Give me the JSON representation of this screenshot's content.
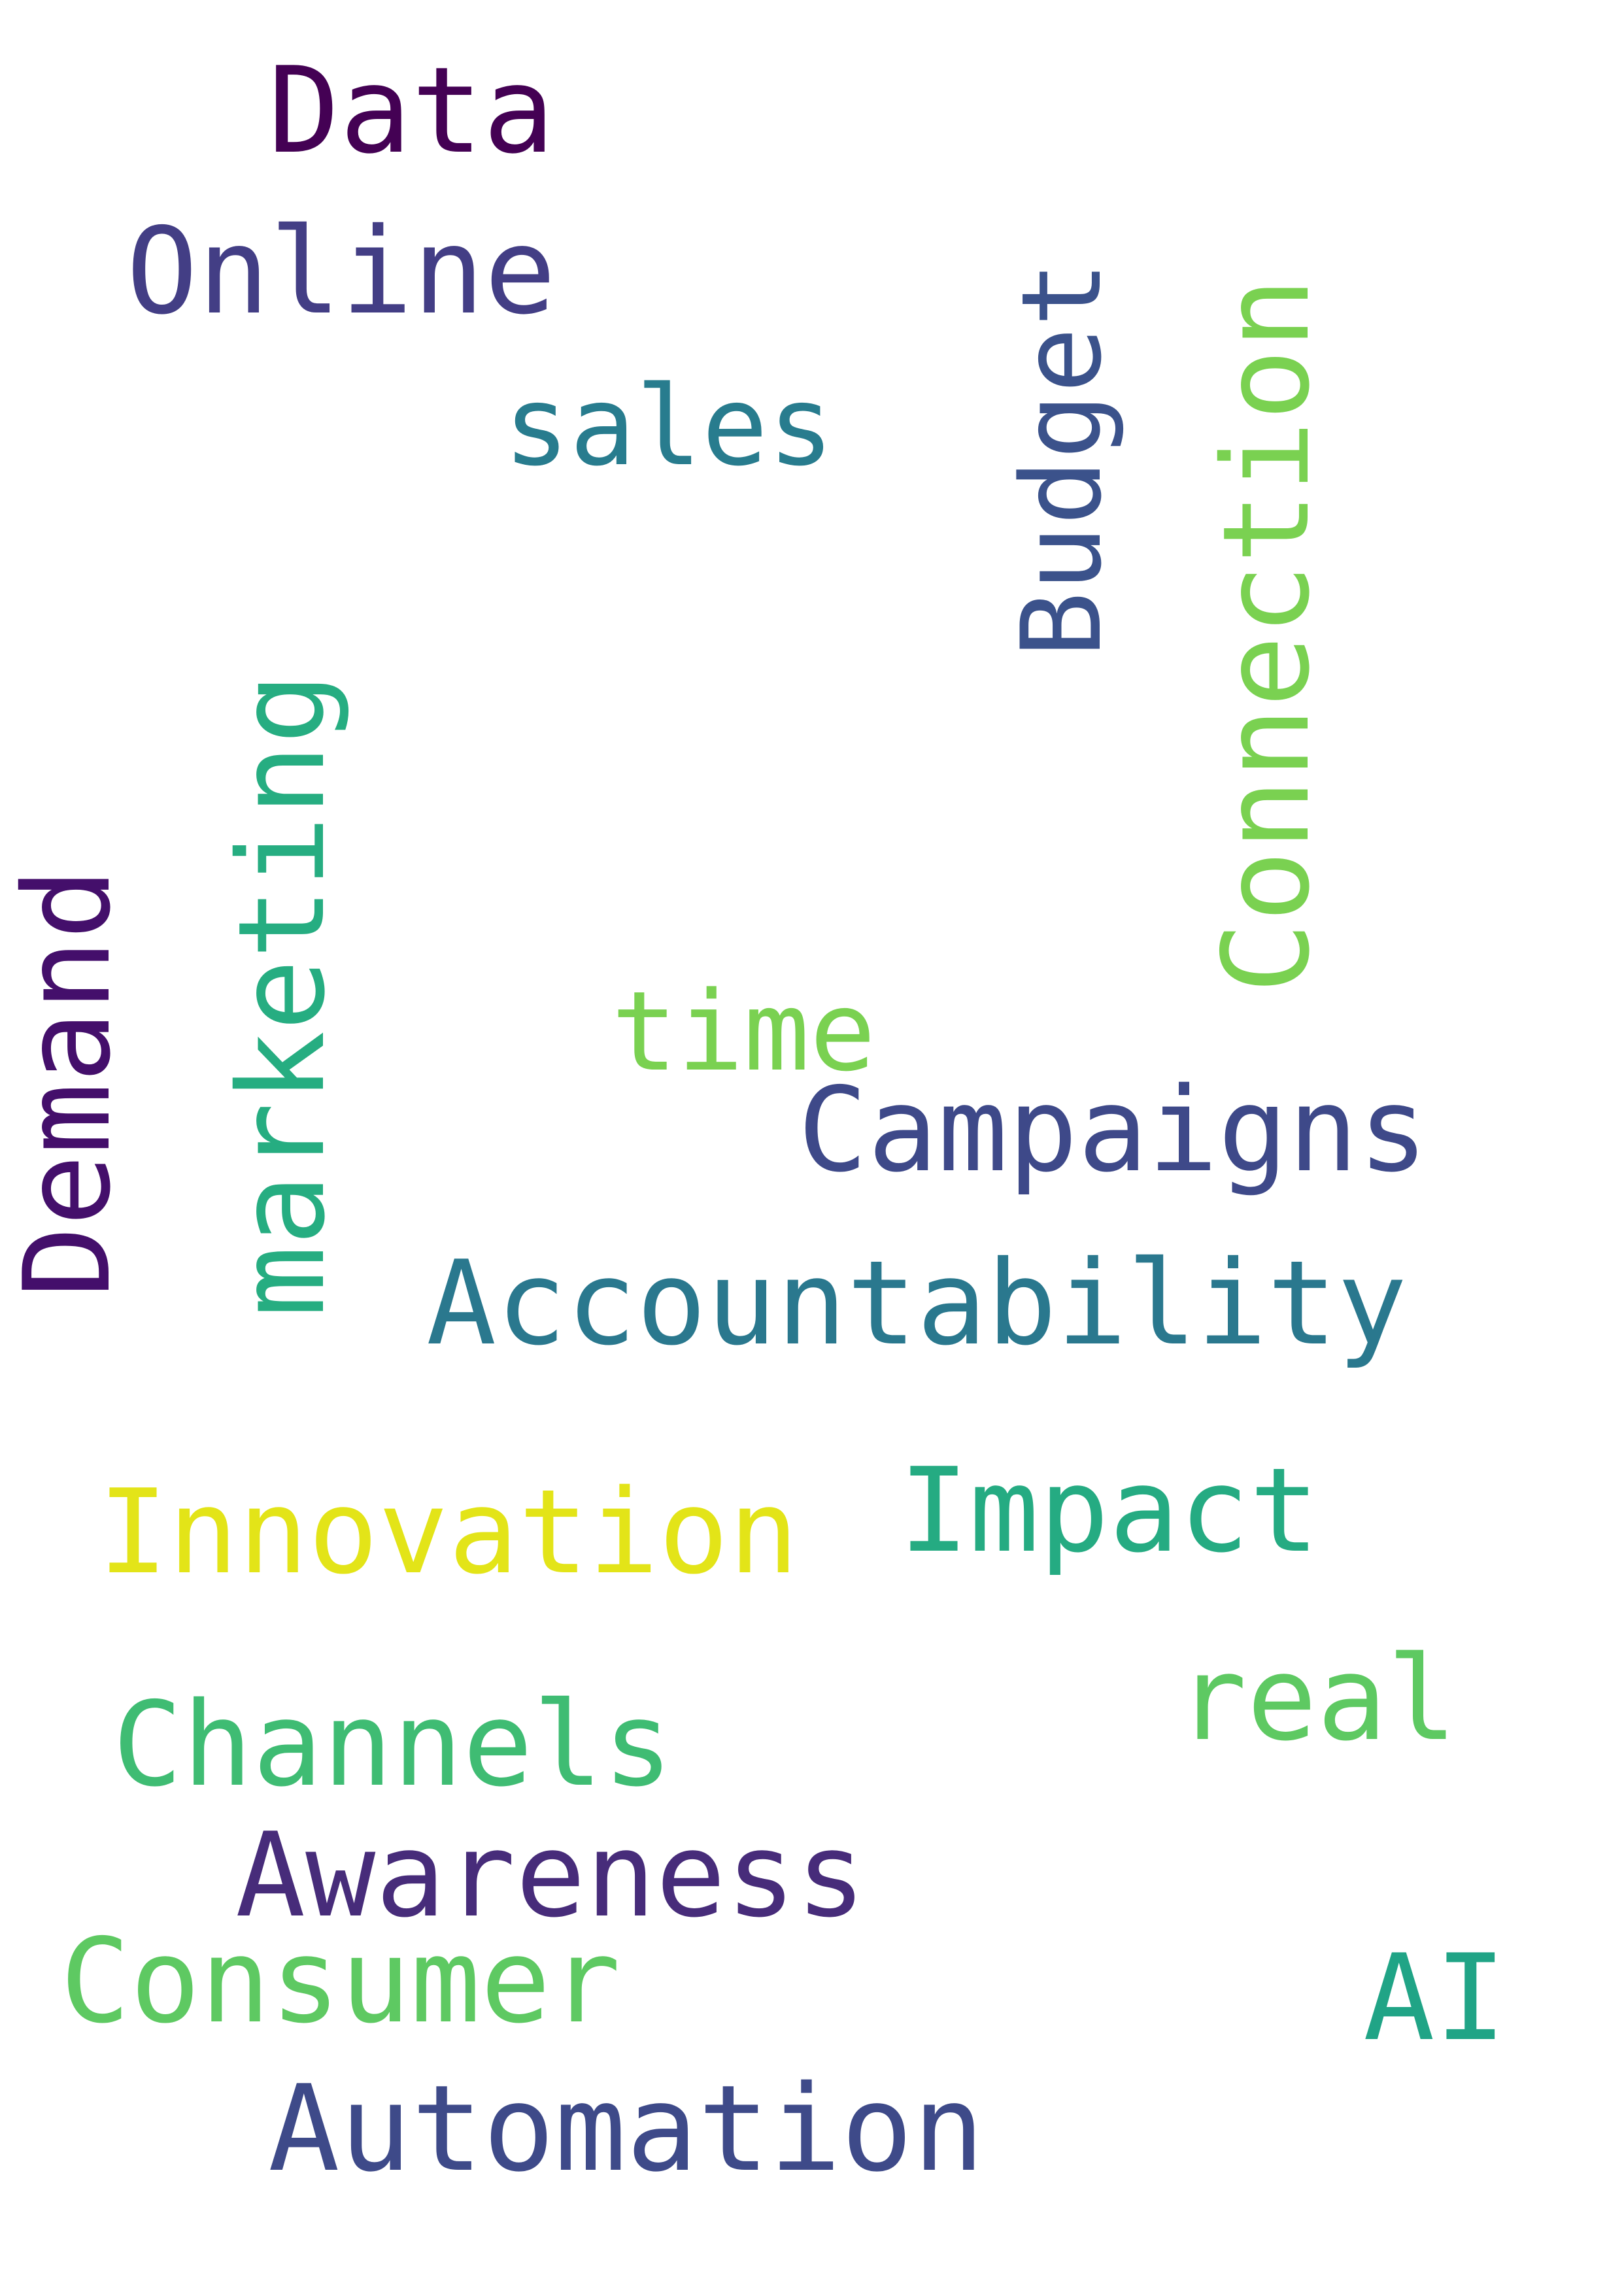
{
  "words": [
    {
      "id": "data",
      "text": "Data",
      "color": "#440154",
      "orientation": "horizontal"
    },
    {
      "id": "online",
      "text": "Online",
      "color": "#433e85",
      "orientation": "horizontal"
    },
    {
      "id": "sales",
      "text": "sales",
      "color": "#287c8e",
      "orientation": "horizontal"
    },
    {
      "id": "budget",
      "text": "Budget",
      "color": "#3b528b",
      "orientation": "vertical"
    },
    {
      "id": "connection",
      "text": "Connection",
      "color": "#7ad151",
      "orientation": "vertical"
    },
    {
      "id": "marketing",
      "text": "marketing",
      "color": "#26ad81",
      "orientation": "vertical"
    },
    {
      "id": "demand",
      "text": "Demand",
      "color": "#440f6b",
      "orientation": "vertical"
    },
    {
      "id": "time",
      "text": "time",
      "color": "#7ad151",
      "orientation": "horizontal"
    },
    {
      "id": "campaigns",
      "text": "Campaigns",
      "color": "#3e4989",
      "orientation": "horizontal"
    },
    {
      "id": "accountability",
      "text": "Accountability",
      "color": "#2a788e",
      "orientation": "horizontal"
    },
    {
      "id": "innovation",
      "text": "Innovation",
      "color": "#e3e418",
      "orientation": "horizontal"
    },
    {
      "id": "impact",
      "text": "Impact",
      "color": "#25ab82",
      "orientation": "horizontal"
    },
    {
      "id": "channels",
      "text": "Channels",
      "color": "#3fbc73",
      "orientation": "horizontal"
    },
    {
      "id": "real",
      "text": "real",
      "color": "#5ec962",
      "orientation": "horizontal"
    },
    {
      "id": "awareness",
      "text": "Awareness",
      "color": "#472c7a",
      "orientation": "horizontal"
    },
    {
      "id": "consumer",
      "text": "Consumer",
      "color": "#5ec962",
      "orientation": "horizontal"
    },
    {
      "id": "ai",
      "text": "AI",
      "color": "#20a486",
      "orientation": "horizontal"
    },
    {
      "id": "automation",
      "text": "Automation",
      "color": "#3e4a89",
      "orientation": "horizontal"
    }
  ]
}
